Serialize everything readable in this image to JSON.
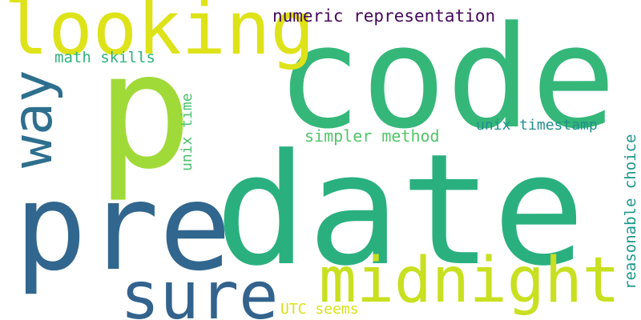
{
  "cloud": {
    "words": [
      {
        "id": "date",
        "text": "date",
        "color": "#2ab07f"
      },
      {
        "id": "code",
        "text": "code",
        "color": "#35b779"
      },
      {
        "id": "p",
        "text": "p",
        "color": "#a0da39"
      },
      {
        "id": "pre",
        "text": "pre",
        "color": "#31668e"
      },
      {
        "id": "looking",
        "text": "looking",
        "color": "#dde318"
      },
      {
        "id": "midnight",
        "text": "midnight",
        "color": "#c8e020"
      },
      {
        "id": "sure",
        "text": "sure",
        "color": "#33638d"
      },
      {
        "id": "way",
        "text": "way",
        "color": "#2e6f8e"
      },
      {
        "id": "numeric_representation",
        "text": "numeric representation",
        "color": "#46085c"
      },
      {
        "id": "math_skills",
        "text": "math skills",
        "color": "#2fb47c"
      },
      {
        "id": "unix_time",
        "text": "unix time",
        "color": "#4ac16d"
      },
      {
        "id": "simpler_method",
        "text": "simpler method",
        "color": "#52c569"
      },
      {
        "id": "unix_timestamp",
        "text": "unix timestamp",
        "color": "#218f8d"
      },
      {
        "id": "reasonable_choice",
        "text": "reasonable choice",
        "color": "#1f988b"
      },
      {
        "id": "utc_seems",
        "text": "UTC seems",
        "color": "#d8e219"
      }
    ]
  }
}
